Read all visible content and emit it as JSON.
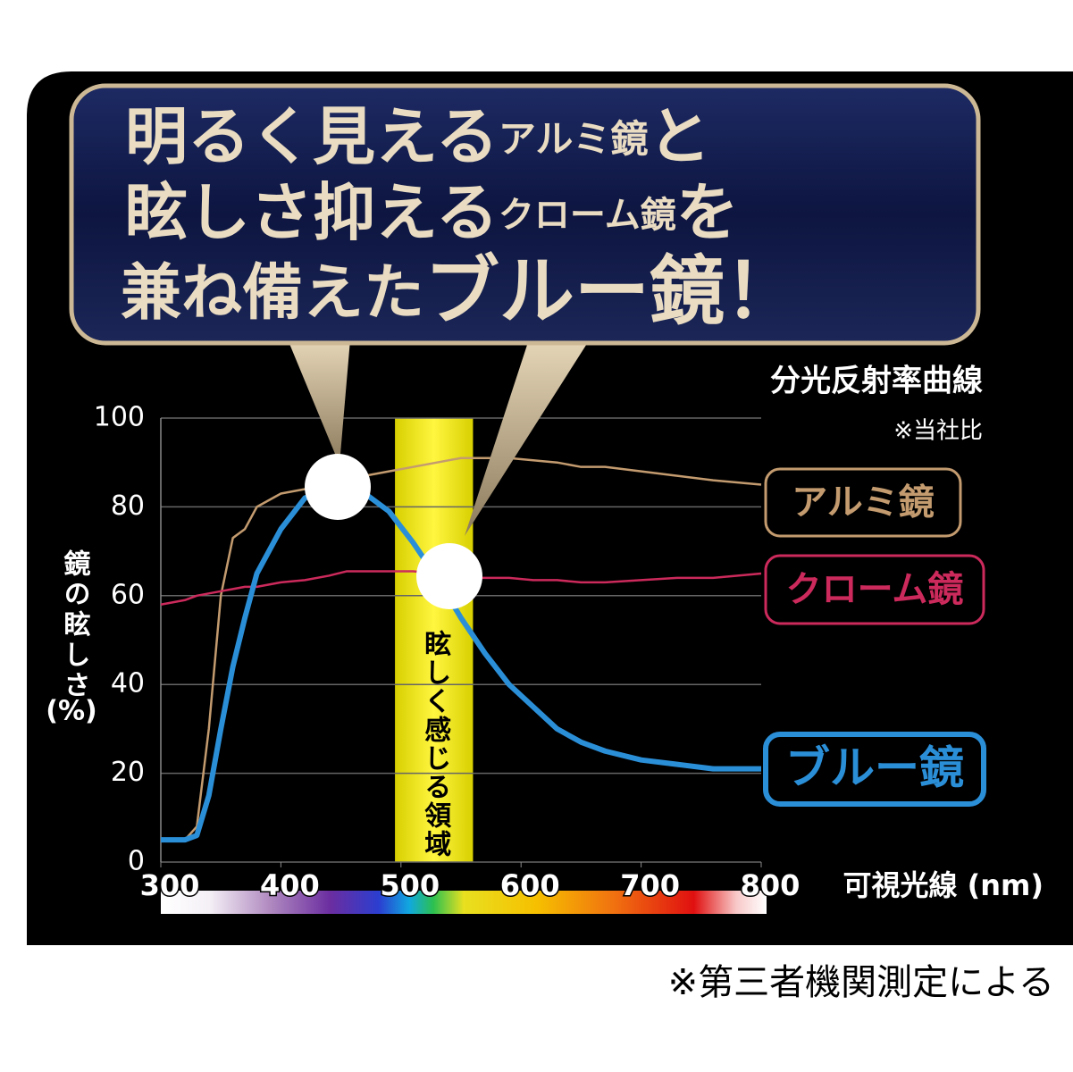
{
  "chart_data": {
    "type": "line",
    "callout": [
      [
        "明るく見える",
        "アルミ鏡",
        "と"
      ],
      [
        "眩しさ抑える",
        "クローム鏡",
        "を"
      ],
      [
        "兼ね備えた",
        "ブルー鏡！"
      ]
    ],
    "title": "分光反射率曲線",
    "note": "※当社比",
    "y_label": "鏡の眩しさ",
    "y_label_unit": "(%)",
    "x_label": "可視光線 (nm)",
    "band": [
      495,
      560
    ],
    "band_label": "眩しく感じる領域",
    "x": [
      300,
      320,
      330,
      340,
      350,
      360,
      370,
      380,
      400,
      420,
      440,
      455,
      470,
      490,
      510,
      530,
      550,
      570,
      590,
      610,
      630,
      650,
      670,
      700,
      730,
      760,
      800
    ],
    "series": [
      {
        "name": "アルミ鏡",
        "color": "#c39b6f",
        "values": [
          5,
          5,
          8,
          30,
          60,
          73,
          75,
          80,
          83,
          84,
          85,
          86,
          87,
          88,
          89,
          90,
          91,
          91,
          91,
          90.5,
          90,
          89,
          89,
          88,
          87,
          86,
          85
        ]
      },
      {
        "name": "クローム鏡",
        "color": "#cc2a5c",
        "values": [
          58,
          59,
          60,
          60.5,
          61,
          61.5,
          62,
          62,
          63,
          63.5,
          64.5,
          65.5,
          65.5,
          65.5,
          65.5,
          65,
          64,
          64,
          64,
          63.5,
          63.5,
          63,
          63,
          63.5,
          64,
          64,
          65
        ]
      },
      {
        "name": "ブルー鏡",
        "color": "#2b8fd8",
        "values": [
          5,
          5,
          6,
          15,
          30,
          44,
          55,
          65,
          75,
          82,
          84,
          84.5,
          83,
          79,
          72,
          64,
          55,
          47,
          40,
          35,
          30,
          27,
          25,
          23,
          22,
          21,
          21
        ]
      }
    ],
    "xlim": [
      300,
      800
    ],
    "xticks": [
      300,
      400,
      500,
      600,
      700,
      800
    ],
    "ylim": [
      0,
      100
    ],
    "yticks": [
      0,
      20,
      40,
      60,
      80,
      100
    ],
    "grid": true
  },
  "footnote": "※第三者機関測定による"
}
